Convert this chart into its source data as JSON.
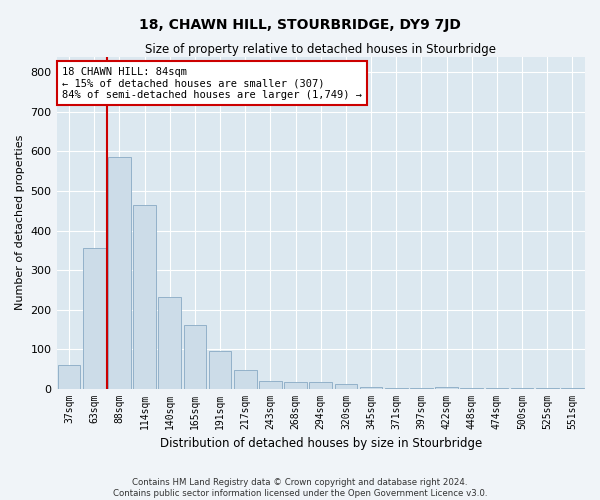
{
  "title": "18, CHAWN HILL, STOURBRIDGE, DY9 7JD",
  "subtitle": "Size of property relative to detached houses in Stourbridge",
  "xlabel": "Distribution of detached houses by size in Stourbridge",
  "ylabel": "Number of detached properties",
  "categories": [
    "37sqm",
    "63sqm",
    "88sqm",
    "114sqm",
    "140sqm",
    "165sqm",
    "191sqm",
    "217sqm",
    "243sqm",
    "268sqm",
    "294sqm",
    "320sqm",
    "345sqm",
    "371sqm",
    "397sqm",
    "422sqm",
    "448sqm",
    "474sqm",
    "500sqm",
    "525sqm",
    "551sqm"
  ],
  "values": [
    60,
    355,
    585,
    465,
    232,
    160,
    95,
    48,
    20,
    17,
    17,
    12,
    5,
    1,
    1,
    5,
    1,
    1,
    1,
    1,
    1
  ],
  "bar_color": "#ccdce8",
  "bar_edge_color": "#88aac4",
  "highlight_color": "#cc0000",
  "annotation_text": "18 CHAWN HILL: 84sqm\n← 15% of detached houses are smaller (307)\n84% of semi-detached houses are larger (1,749) →",
  "annotation_box_color": "#ffffff",
  "annotation_box_edge": "#cc0000",
  "ylim": [
    0,
    840
  ],
  "yticks": [
    0,
    100,
    200,
    300,
    400,
    500,
    600,
    700,
    800
  ],
  "background_color": "#dce8f0",
  "grid_color": "#ffffff",
  "fig_background": "#f0f4f8",
  "footer_line1": "Contains HM Land Registry data © Crown copyright and database right 2024.",
  "footer_line2": "Contains public sector information licensed under the Open Government Licence v3.0."
}
